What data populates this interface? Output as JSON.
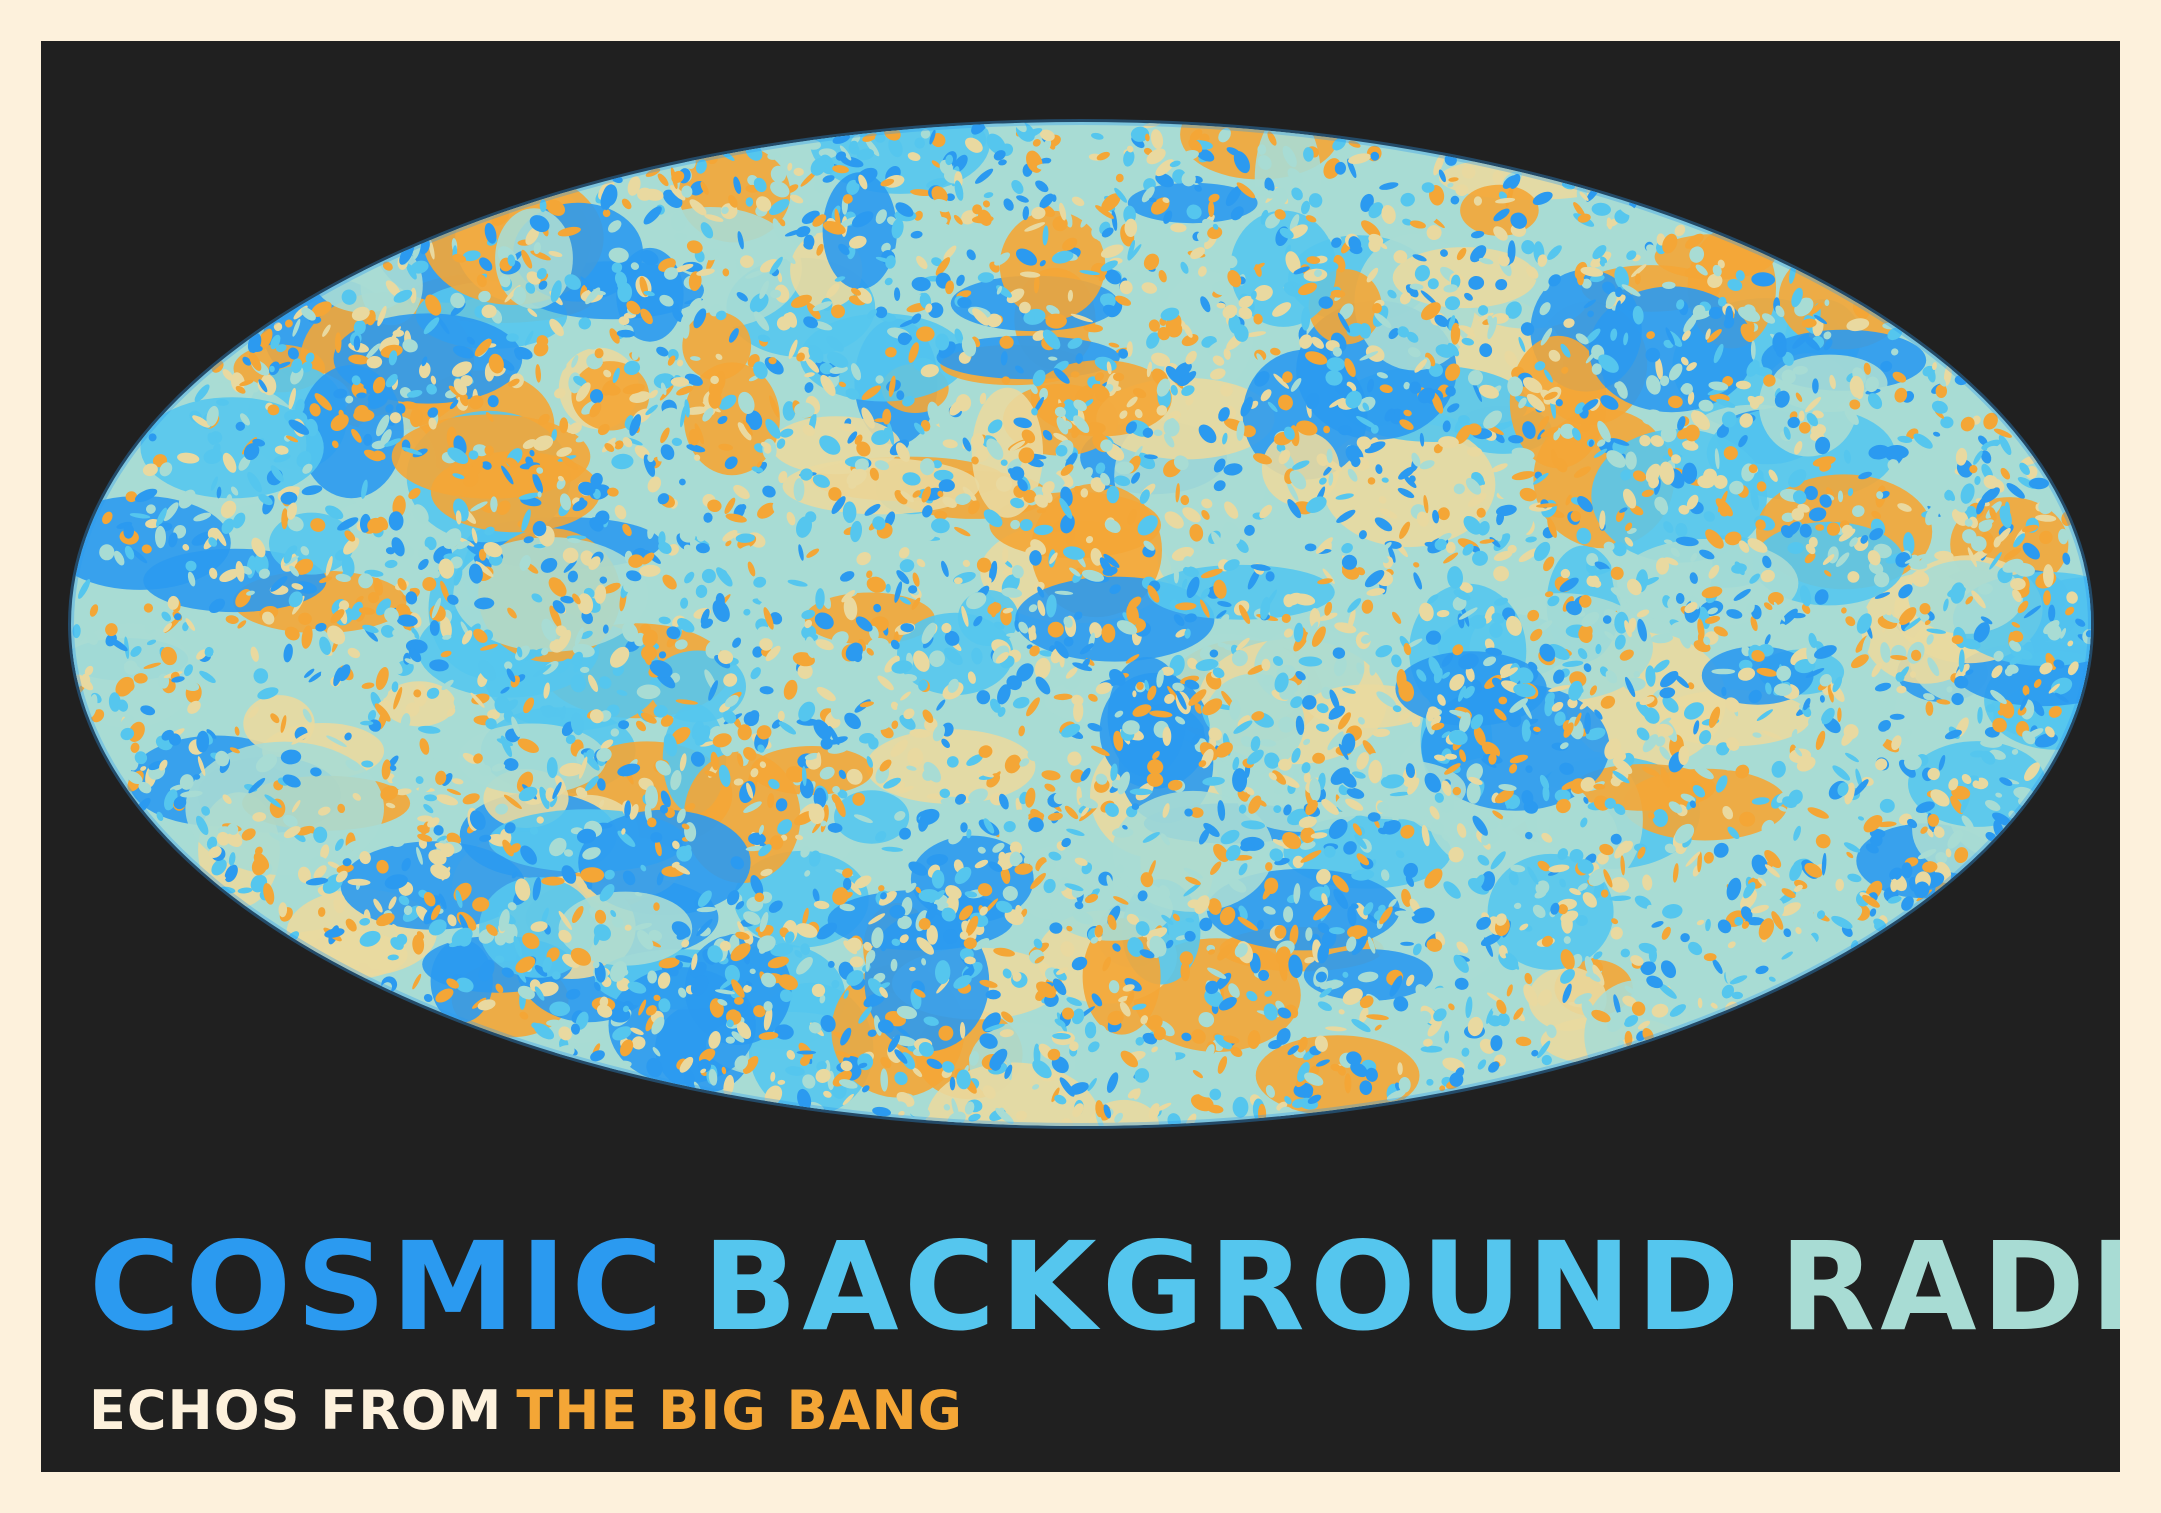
{
  "title": {
    "words": [
      "COSMIC",
      "BACKGROUND",
      "RADIATION"
    ]
  },
  "subtitle": {
    "part1": "ECHOS FROM",
    "part2": "THE BIG BANG"
  },
  "colors": {
    "frame": "#fdf1dc",
    "panel": "#202020",
    "deep_blue": "#2b9af0",
    "sky_blue": "#55c6ee",
    "pale_teal": "#a8dcd4",
    "pale_yellow": "#e9d9a0",
    "orange": "#f4a636",
    "cream": "#fdf1dc"
  },
  "map": {
    "projection": "mollweide",
    "palette": [
      "#2b9af0",
      "#55c6ee",
      "#a8dcd4",
      "#e9d9a0",
      "#f4a636"
    ]
  }
}
